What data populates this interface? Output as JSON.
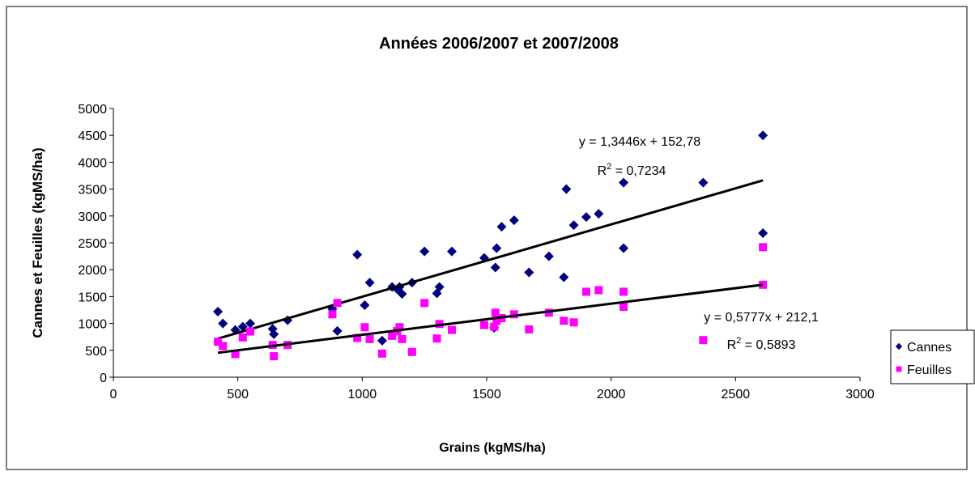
{
  "chart_data": {
    "type": "scatter",
    "title": "Années 2006/2007 et 2007/2008",
    "xlabel": "Grains (kgMS/ha)",
    "ylabel": "Cannes et Feuilles (kgMS/ha)",
    "xlim": [
      0,
      3000
    ],
    "xticks": [
      0,
      500,
      1000,
      1500,
      2000,
      2500,
      3000
    ],
    "ylim": [
      0,
      5000
    ],
    "yticks": [
      0,
      500,
      1000,
      1500,
      2000,
      2500,
      3000,
      3500,
      4000,
      4500,
      5000
    ],
    "legend": "right",
    "series": [
      {
        "name": "Cannes",
        "color": "#000080",
        "marker": "diamond",
        "x": [
          420,
          440,
          490,
          520,
          550,
          640,
          645,
          700,
          880,
          900,
          980,
          1010,
          1030,
          1080,
          1120,
          1140,
          1150,
          1160,
          1200,
          1250,
          1300,
          1310,
          1360,
          1490,
          1530,
          1535,
          1540,
          1560,
          1610,
          1670,
          1750,
          1810,
          1820,
          1850,
          1900,
          1950,
          2050,
          2050,
          2370,
          2610,
          2610
        ],
        "values": [
          1220,
          1000,
          880,
          940,
          1000,
          900,
          800,
          1060,
          1270,
          860,
          2280,
          1340,
          1760,
          680,
          1680,
          1640,
          1680,
          1550,
          1760,
          2340,
          1560,
          1680,
          2340,
          2220,
          920,
          2040,
          2400,
          2800,
          2920,
          1950,
          2250,
          1860,
          3500,
          2830,
          2980,
          3040,
          2400,
          3620,
          3620,
          2680,
          4500
        ],
        "trendline": {
          "slope": 1.3446,
          "intercept": 152.78,
          "equation": "y = 1,3446x + 152,78",
          "r2_base": "R",
          "r2_sup": "2",
          "r2_text": " = 0,7234"
        }
      },
      {
        "name": "Feuilles",
        "color": "#ff00ff",
        "marker": "square",
        "x": [
          420,
          440,
          490,
          520,
          550,
          640,
          645,
          700,
          880,
          900,
          980,
          1010,
          1030,
          1080,
          1120,
          1140,
          1150,
          1160,
          1200,
          1250,
          1300,
          1310,
          1360,
          1490,
          1530,
          1535,
          1540,
          1560,
          1610,
          1670,
          1750,
          1810,
          1850,
          1900,
          1950,
          2050,
          2050,
          2370,
          2610,
          2610
        ],
        "values": [
          660,
          580,
          430,
          740,
          850,
          600,
          390,
          600,
          1170,
          1380,
          730,
          930,
          710,
          440,
          770,
          860,
          930,
          710,
          470,
          1380,
          720,
          990,
          880,
          970,
          940,
          1200,
          1050,
          1100,
          1170,
          890,
          1200,
          1050,
          1020,
          1590,
          1620,
          1590,
          1310,
          690,
          1720,
          2420
        ],
        "trendline": {
          "slope": 0.5777,
          "intercept": 212.1,
          "equation": "y = 0,5777x + 212,1",
          "r2_base": "R",
          "r2_sup": "2",
          "r2_text": " = 0,5893"
        }
      }
    ]
  }
}
